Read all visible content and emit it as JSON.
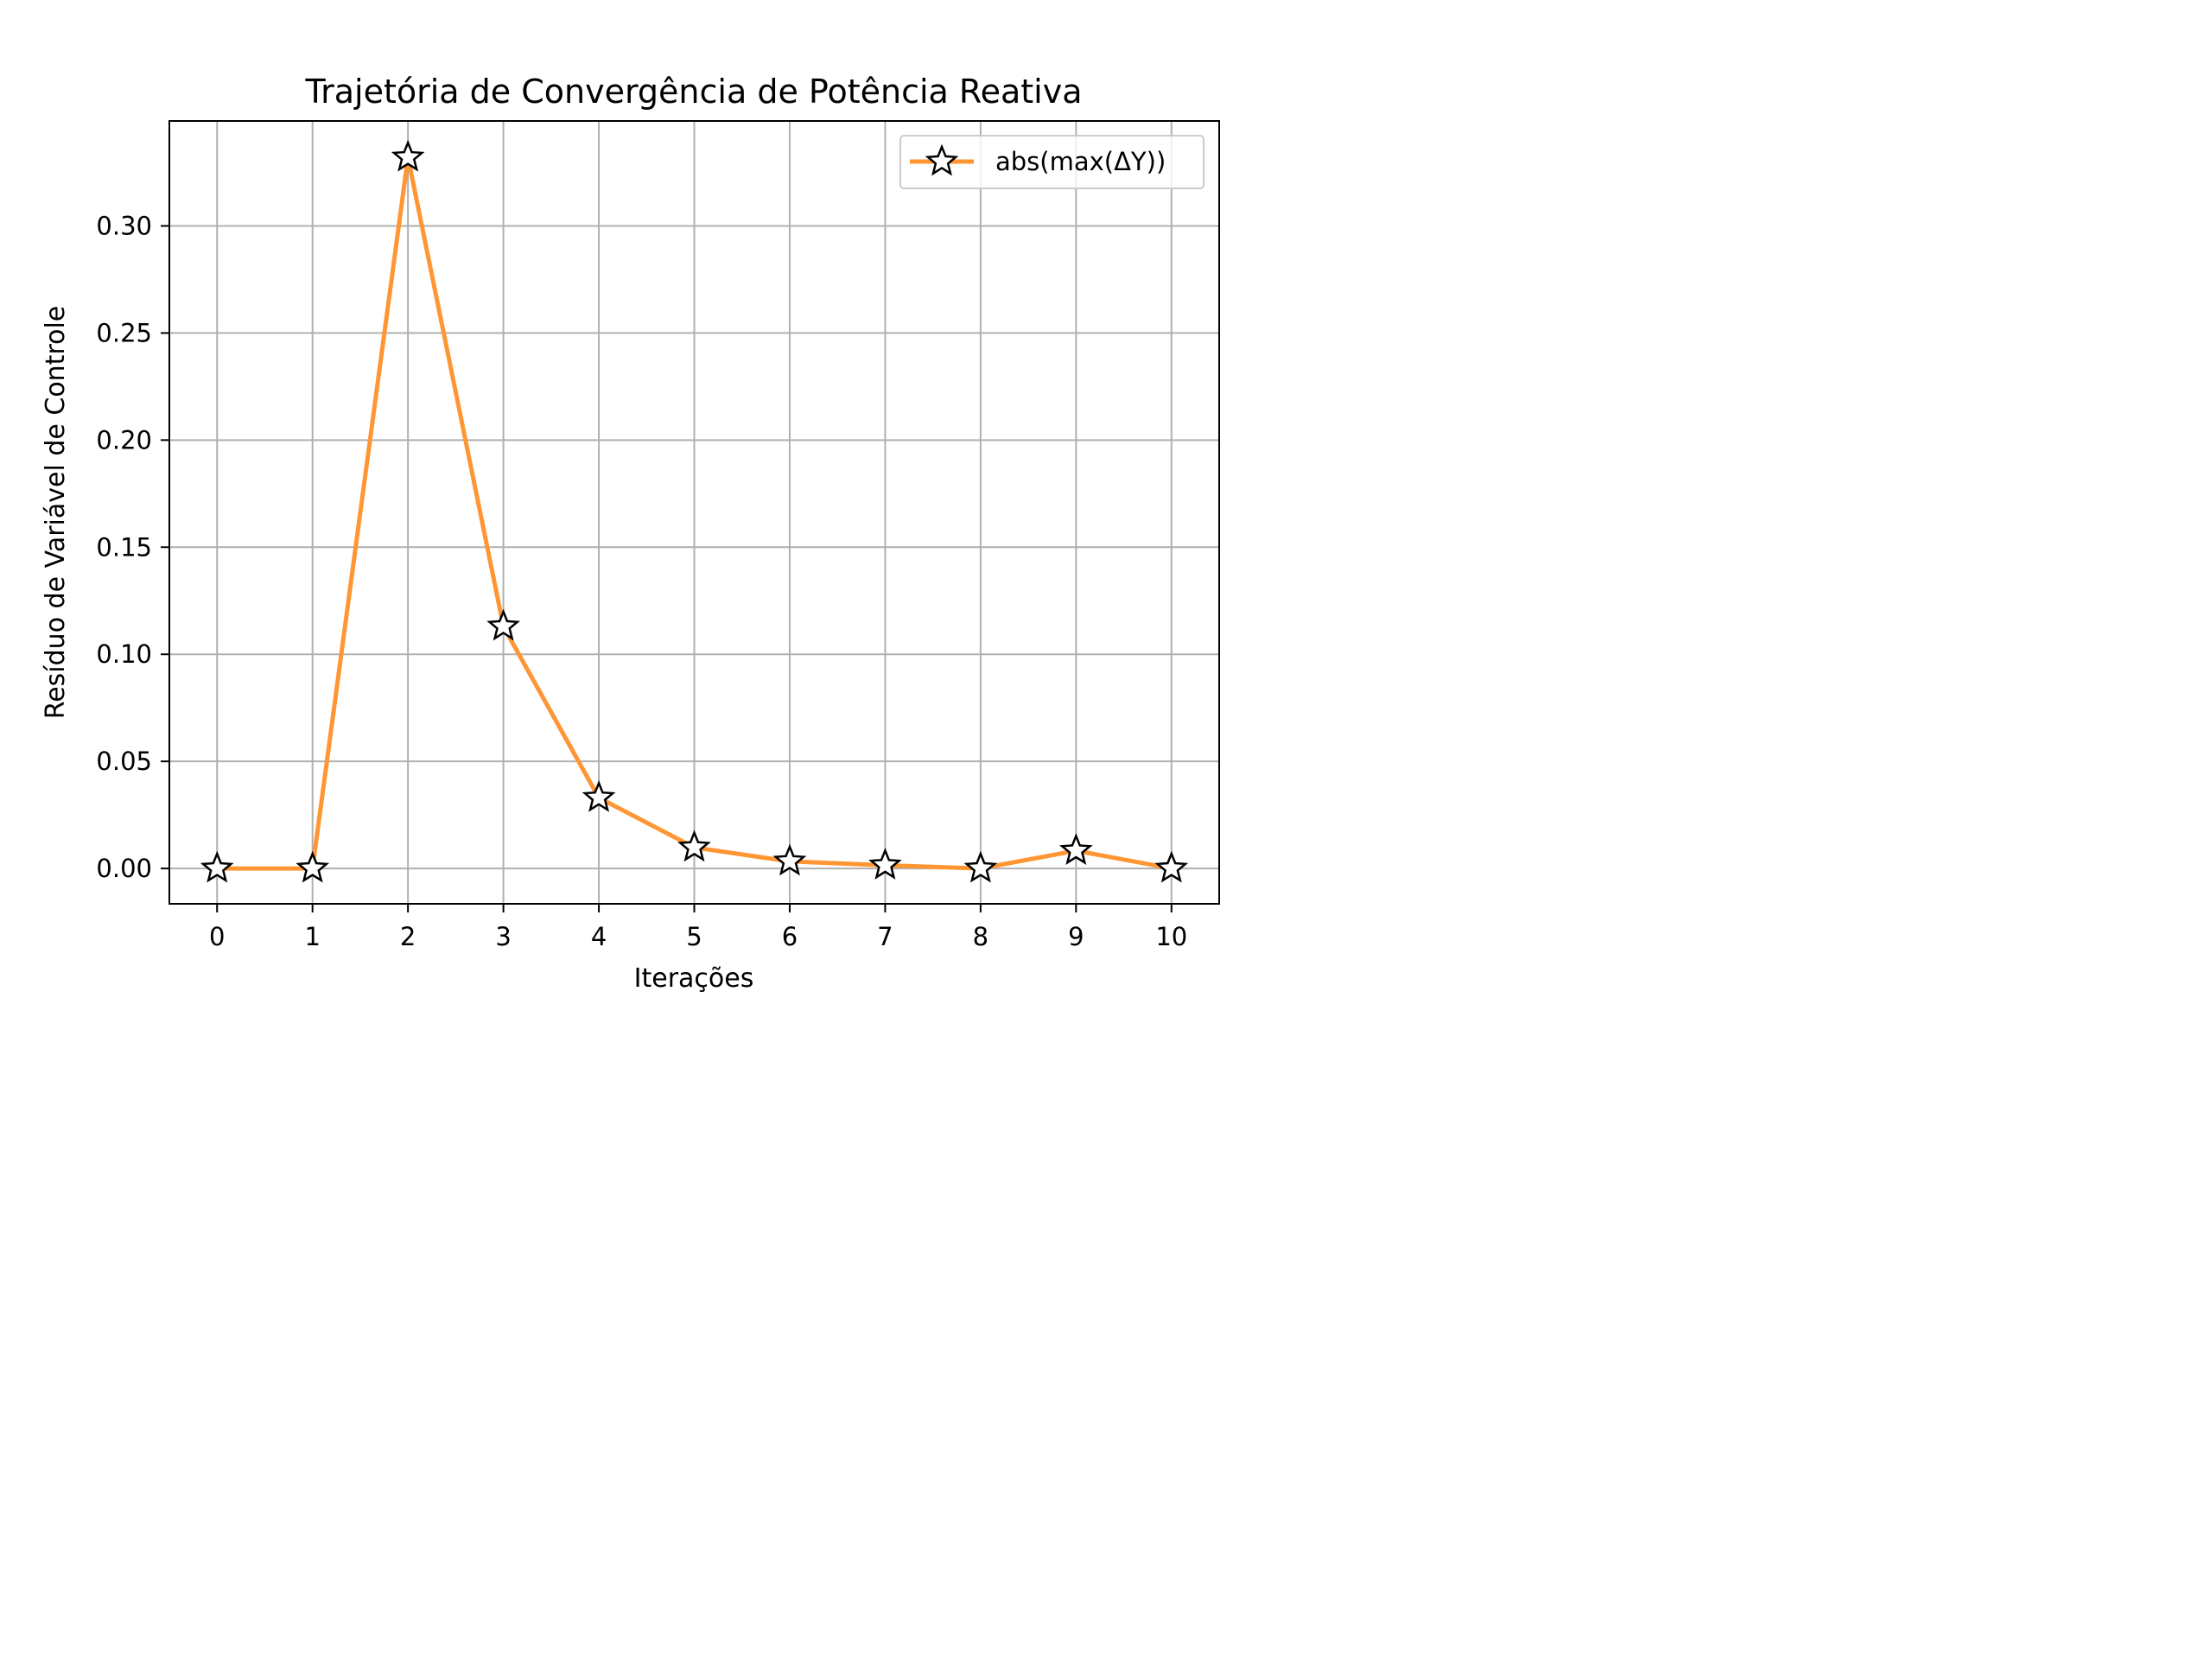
{
  "chart_data": {
    "type": "line",
    "title": "Trajetória de Convergência de Potência Reativa",
    "xlabel": "Iterações",
    "ylabel": "Resíduo de Variável de Controle",
    "x": [
      0,
      1,
      2,
      3,
      4,
      5,
      6,
      7,
      8,
      9,
      10
    ],
    "xlim": [
      -0.5,
      10.5
    ],
    "ylim": [
      -0.0165,
      0.349
    ],
    "x_ticks": [
      "0",
      "1",
      "2",
      "3",
      "4",
      "5",
      "6",
      "7",
      "8",
      "9",
      "10"
    ],
    "y_ticks": [
      "0.00",
      "0.05",
      "0.10",
      "0.15",
      "0.20",
      "0.25",
      "0.30"
    ],
    "grid": true,
    "legend_position": "upper-right",
    "series": [
      {
        "name": "abs(max(ΔY))",
        "values": [
          0.0,
          0.0,
          0.332,
          0.113,
          0.033,
          0.0098,
          0.0033,
          0.0015,
          0.0,
          0.0083,
          0.0
        ],
        "color": "#ff9633",
        "marker": "star",
        "marker_fill": "#ffffff",
        "marker_edge": "#000000"
      }
    ]
  }
}
